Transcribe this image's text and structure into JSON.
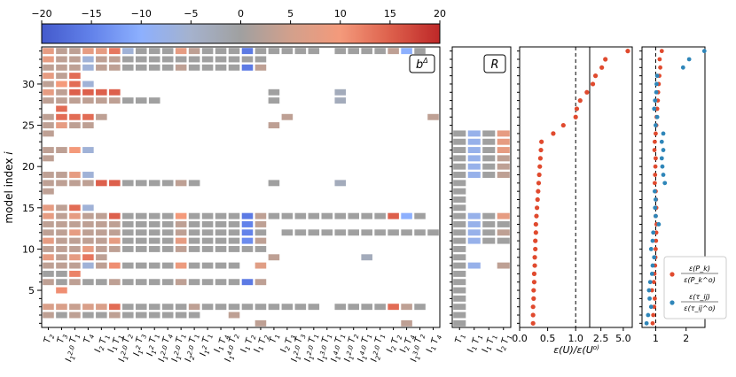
{
  "chart_data": [
    {
      "type": "heatmap",
      "panel_label": "b^Δ",
      "ylabel": "model index",
      "ylabel_symbol": "i",
      "model_indices": [
        1,
        2,
        3,
        4,
        5,
        6,
        7,
        8,
        9,
        10,
        11,
        12,
        13,
        14,
        15,
        16,
        17,
        18,
        19,
        20,
        21,
        22,
        23,
        24,
        25,
        26,
        27,
        28,
        29,
        30,
        31,
        32,
        33,
        34
      ],
      "y_ticks": [
        5,
        10,
        15,
        20,
        25,
        30
      ],
      "colorbar": {
        "vmin": -20,
        "vmax": 20,
        "ticks": [
          -20,
          -15,
          -10,
          -5,
          0,
          5,
          10,
          15,
          20
        ],
        "colormap": "coolwarm"
      },
      "columns": [
        "T_2",
        "T_3",
        "I_1^2.0 T_1",
        "T_4",
        "I_2 T_1",
        "I_1 T_1",
        "I_1^2.0 T_2",
        "I_1^2 T_3",
        "I_1^2 T_1",
        "I_1^2.0 T_4",
        "I_1^2.0 T_1",
        "I_2^2.0 T_1",
        "I_1^2 T_1",
        "I_1 T_4",
        "I_1^4.0 T_2",
        "I_1 T_2",
        "I_1 T_2",
        "T_1",
        "I_2 T_3",
        "I_1^2.0 T_3",
        "I_1^2.0 T_1",
        "I_1^3.0 T_1",
        "I_1^4.0 T_1",
        "I_1^2.0 T_2",
        "I_1^4.0 T_1",
        "I_2^2.0 T_1",
        "I_2 T_2",
        "I_2 T_4",
        "I_1^3.0 T_2",
        "I_1 T_4"
      ],
      "rows": [
        {
          "i": 1,
          "values": {
            "16": 3,
            "27": 3
          }
        },
        {
          "i": 2,
          "values": {
            "0": 3,
            "1": 0,
            "2": 3,
            "3": 0,
            "4": 0,
            "5": 3,
            "6": 0,
            "7": 0,
            "8": 0,
            "9": 0,
            "10": 0,
            "11": 0,
            "14": 3
          }
        },
        {
          "i": 3,
          "values": {
            "0": 6,
            "1": 6,
            "2": 4,
            "3": 6,
            "4": 6,
            "5": 14,
            "6": 0,
            "7": 0,
            "8": 0,
            "9": 0,
            "10": 0,
            "11": 3,
            "12": 0,
            "13": 0,
            "14": 0,
            "15": 0,
            "16": 0,
            "17": 0,
            "18": 0,
            "19": 0,
            "20": 0,
            "22": 0,
            "23": 0,
            "24": 0,
            "25": 0,
            "26": 14,
            "27": 3,
            "28": 0
          }
        },
        {
          "i": 5,
          "values": {
            "1": 11
          }
        },
        {
          "i": 6,
          "values": {
            "0": 3,
            "1": 0,
            "2": 3,
            "3": 0,
            "4": 0,
            "5": 3,
            "6": 0,
            "7": 0,
            "8": 0,
            "9": 0,
            "10": 3,
            "11": 0,
            "12": 0,
            "13": 0,
            "14": 0,
            "15": -16,
            "16": 3
          }
        },
        {
          "i": 7,
          "values": {
            "0": 0,
            "1": 0,
            "2": 12
          }
        },
        {
          "i": 8,
          "values": {
            "0": 3,
            "1": 3,
            "2": 3,
            "3": -6,
            "4": 3,
            "5": 11,
            "6": 0,
            "7": 0,
            "8": 0,
            "9": 0,
            "10": 9,
            "11": 0,
            "12": 0,
            "13": 0,
            "14": 0,
            "16": 7
          }
        },
        {
          "i": 9,
          "values": {
            "0": 8,
            "1": 3,
            "2": 8,
            "3": 13,
            "4": 3,
            "17": 3,
            "24": -3
          }
        },
        {
          "i": 10,
          "values": {
            "0": 3,
            "1": 3,
            "2": 3,
            "3": 8,
            "4": 3,
            "5": 3,
            "6": 0,
            "7": 0,
            "8": 0,
            "9": 0,
            "10": 3,
            "11": 0,
            "12": 0,
            "13": 0,
            "14": 0,
            "15": 0,
            "16": 0
          }
        },
        {
          "i": 11,
          "values": {
            "0": 8,
            "1": 3,
            "2": 3,
            "3": 3,
            "4": 3,
            "5": 8,
            "6": 0,
            "7": 0,
            "8": 0,
            "9": 0,
            "10": 8,
            "11": 0,
            "12": 0,
            "13": 0,
            "14": 0,
            "15": -14,
            "16": 3
          }
        },
        {
          "i": 12,
          "values": {
            "0": 3,
            "1": 3,
            "2": 8,
            "3": 3,
            "4": 3,
            "5": 3,
            "6": 0,
            "7": 0,
            "8": 0,
            "9": 0,
            "10": 3,
            "11": 0,
            "12": 0,
            "13": 0,
            "14": 0,
            "15": -15,
            "16": 0,
            "18": 0,
            "19": 0,
            "20": 0,
            "21": 0,
            "22": 0,
            "23": 0,
            "24": 0,
            "25": 0,
            "26": 0,
            "27": 0,
            "28": 0,
            "29": 0
          }
        },
        {
          "i": 13,
          "values": {
            "0": 3,
            "1": 3,
            "2": 3,
            "3": 3,
            "4": 3,
            "5": 3,
            "6": 0,
            "7": 0,
            "8": 0,
            "9": 0,
            "10": 3,
            "11": 0,
            "12": 0,
            "13": 0,
            "14": 0,
            "15": -15,
            "16": 3
          }
        },
        {
          "i": 14,
          "values": {
            "0": 8,
            "1": 3,
            "2": 8,
            "3": 3,
            "4": 3,
            "5": 15,
            "6": 0,
            "7": 0,
            "8": 0,
            "9": 0,
            "10": 10,
            "11": 0,
            "12": 0,
            "13": 0,
            "14": 0,
            "15": -16,
            "16": 3,
            "17": 0,
            "18": 0,
            "19": 0,
            "20": 0,
            "21": 0,
            "22": 0,
            "23": 0,
            "24": 0,
            "25": 0,
            "26": 15,
            "27": -10,
            "28": 0
          }
        },
        {
          "i": 15,
          "values": {
            "0": 8,
            "1": 3,
            "2": 14,
            "3": -6
          }
        },
        {
          "i": 17,
          "values": {
            "0": 3
          }
        },
        {
          "i": 18,
          "values": {
            "0": 3,
            "1": 3,
            "2": 3,
            "3": 3,
            "4": 15,
            "5": 15,
            "6": 0,
            "7": 0,
            "8": 0,
            "9": 0,
            "10": 3,
            "11": 0,
            "17": 0,
            "22": -3
          }
        },
        {
          "i": 19,
          "values": {
            "0": 3,
            "1": 3,
            "2": 8,
            "3": -6
          }
        },
        {
          "i": 21,
          "values": {
            "0": 3
          }
        },
        {
          "i": 22,
          "values": {
            "0": 3,
            "1": 3,
            "2": 10,
            "3": -6
          }
        },
        {
          "i": 24,
          "values": {
            "0": 3
          }
        },
        {
          "i": 25,
          "values": {
            "0": 3,
            "1": 8,
            "2": 3,
            "3": 3,
            "17": 3
          }
        },
        {
          "i": 26,
          "values": {
            "0": 3,
            "1": 14,
            "2": 14,
            "3": 14,
            "4": 3,
            "18": 3,
            "29": 3
          }
        },
        {
          "i": 27,
          "values": {
            "1": 14
          }
        },
        {
          "i": 28,
          "values": {
            "0": 3,
            "1": 3,
            "2": 3,
            "3": 3,
            "4": 3,
            "5": 3,
            "6": 0,
            "7": 0,
            "8": 0,
            "17": 0,
            "22": -3
          }
        },
        {
          "i": 29,
          "values": {
            "0": 8,
            "1": 3,
            "2": 15,
            "3": 15,
            "4": 15,
            "5": 15,
            "17": 0,
            "22": -3
          }
        },
        {
          "i": 30,
          "values": {
            "0": 3,
            "1": 10,
            "2": 14,
            "3": -6
          }
        },
        {
          "i": 31,
          "values": {
            "0": 8,
            "1": 3,
            "2": 14
          }
        },
        {
          "i": 32,
          "values": {
            "0": 3,
            "1": 3,
            "2": 3,
            "3": -6,
            "4": 3,
            "5": 3,
            "6": 0,
            "7": 0,
            "8": 0,
            "9": 0,
            "10": 3,
            "11": 0,
            "12": 0,
            "13": 0,
            "14": 0,
            "15": -16,
            "16": 3
          }
        },
        {
          "i": 33,
          "values": {
            "0": 8,
            "1": 3,
            "2": 3,
            "3": -6,
            "4": 3,
            "5": 3,
            "6": 0,
            "7": 0,
            "8": 0,
            "9": 0,
            "10": 0,
            "11": 0,
            "12": 0,
            "13": 0,
            "14": 0,
            "15": 0,
            "16": 0
          }
        },
        {
          "i": 34,
          "values": {
            "0": 8,
            "1": 3,
            "2": 3,
            "3": 8,
            "4": 8,
            "5": 13,
            "6": -6,
            "7": 0,
            "8": 0,
            "9": 0,
            "10": 8,
            "11": 3,
            "12": 0,
            "13": 0,
            "14": 0,
            "15": -16,
            "16": 0,
            "17": 0,
            "18": 0,
            "19": 0,
            "20": 0,
            "22": 0,
            "23": 0,
            "24": 0,
            "25": 0,
            "26": 3,
            "27": -10,
            "28": 0
          }
        }
      ]
    },
    {
      "type": "heatmap",
      "panel_label": "R",
      "columns": [
        "T_1",
        "I_1 T_1",
        "I_1 T_1",
        "I_2 T_1"
      ],
      "rows": [
        {
          "i": 1,
          "values": {
            "0": 0
          }
        },
        {
          "i": 2,
          "values": {
            "0": 0
          }
        },
        {
          "i": 3,
          "values": {
            "0": 0
          }
        },
        {
          "i": 4,
          "values": {
            "0": 0
          }
        },
        {
          "i": 5,
          "values": {
            "0": 0
          }
        },
        {
          "i": 6,
          "values": {
            "0": 0
          }
        },
        {
          "i": 7,
          "values": {
            "0": 0
          }
        },
        {
          "i": 8,
          "values": {
            "0": 0,
            "1": -8,
            "3": 3
          }
        },
        {
          "i": 9,
          "values": {
            "0": 0
          }
        },
        {
          "i": 10,
          "values": {
            "0": 0
          }
        },
        {
          "i": 11,
          "values": {
            "0": 0,
            "1": -8,
            "2": 0,
            "3": 0
          }
        },
        {
          "i": 12,
          "values": {
            "0": 0,
            "1": -8,
            "2": 0,
            "3": 3
          }
        },
        {
          "i": 13,
          "values": {
            "0": 0,
            "1": -8,
            "2": 0,
            "3": 0
          }
        },
        {
          "i": 14,
          "values": {
            "0": 0,
            "1": -8,
            "2": 0,
            "3": 8
          }
        },
        {
          "i": 15,
          "values": {
            "0": 0
          }
        },
        {
          "i": 16,
          "values": {
            "0": 0
          }
        },
        {
          "i": 17,
          "values": {
            "0": 0
          }
        },
        {
          "i": 18,
          "values": {
            "0": 0
          }
        },
        {
          "i": 19,
          "values": {
            "0": 0,
            "1": -8,
            "2": 0,
            "3": 3
          }
        },
        {
          "i": 20,
          "values": {
            "0": 0,
            "1": -8,
            "2": 0,
            "3": 3
          }
        },
        {
          "i": 21,
          "values": {
            "0": 0,
            "1": -8,
            "2": 0,
            "3": 3
          }
        },
        {
          "i": 22,
          "values": {
            "0": 0,
            "1": -8,
            "2": 0,
            "3": 8
          }
        },
        {
          "i": 23,
          "values": {
            "0": 0,
            "1": -8,
            "2": 0,
            "3": 8
          }
        },
        {
          "i": 24,
          "values": {
            "0": 0,
            "1": -8,
            "2": 0,
            "3": 8
          }
        }
      ]
    },
    {
      "type": "scatter",
      "xlabel": "ε(U)/ε(U^o)",
      "x_scale": "linear 0–1.25, then compressed 1.25–6",
      "x_ticks": [
        "0.0",
        "0.5",
        "1.0",
        "2.5",
        "5.0"
      ],
      "vlines": [
        1.0,
        1.25
      ],
      "color": "#e04a2e",
      "points": [
        0.24,
        0.24,
        0.24,
        0.25,
        0.25,
        0.26,
        0.26,
        0.27,
        0.27,
        0.28,
        0.28,
        0.29,
        0.29,
        0.3,
        0.31,
        0.32,
        0.33,
        0.34,
        0.35,
        0.36,
        0.37,
        0.38,
        0.39,
        0.6,
        0.78,
        1.0,
        1.02,
        1.08,
        1.2,
        1.6,
        1.9,
        2.6,
        3.0,
        5.5
      ]
    },
    {
      "type": "scatter",
      "x_ticks": [
        "1",
        "2"
      ],
      "vline": 1.0,
      "legend": {
        "location": "lower-right",
        "entries": [
          "ε(P_k)/ε(P_k^o)",
          "ε(τ_ij)/ε(τ_ij^o)"
        ]
      },
      "series": [
        {
          "name": "ε(P_k)/ε(P_k^o)",
          "color": "#e04a2e",
          "values": [
            0.9,
            0.92,
            0.95,
            0.97,
            0.88,
            0.94,
            0.96,
            0.98,
            0.99,
            1.0,
            1.01,
            1.02,
            1.03,
            1.0,
            1.02,
            1.01,
            1.0,
            0.97,
            0.98,
            0.99,
            1.0,
            0.96,
            0.97,
            1.0,
            1.02,
            1.03,
            1.05,
            1.07,
            1.08,
            1.1,
            1.12,
            1.15,
            1.13,
            1.2
          ]
        },
        {
          "name": "ε(τ_ij)/ε(τ_ij^o)",
          "color": "#2f86b9",
          "values": [
            0.7,
            0.75,
            0.85,
            0.8,
            0.78,
            0.82,
            0.88,
            0.9,
            0.95,
            0.85,
            0.9,
            0.92,
            1.1,
            1.0,
            0.98,
            1.0,
            0.97,
            1.3,
            1.25,
            1.22,
            1.2,
            1.25,
            1.2,
            1.25,
            1.0,
            1.05,
            0.95,
            0.98,
            1.02,
            1.03,
            1.05,
            1.9,
            2.1,
            2.6
          ]
        }
      ]
    }
  ]
}
